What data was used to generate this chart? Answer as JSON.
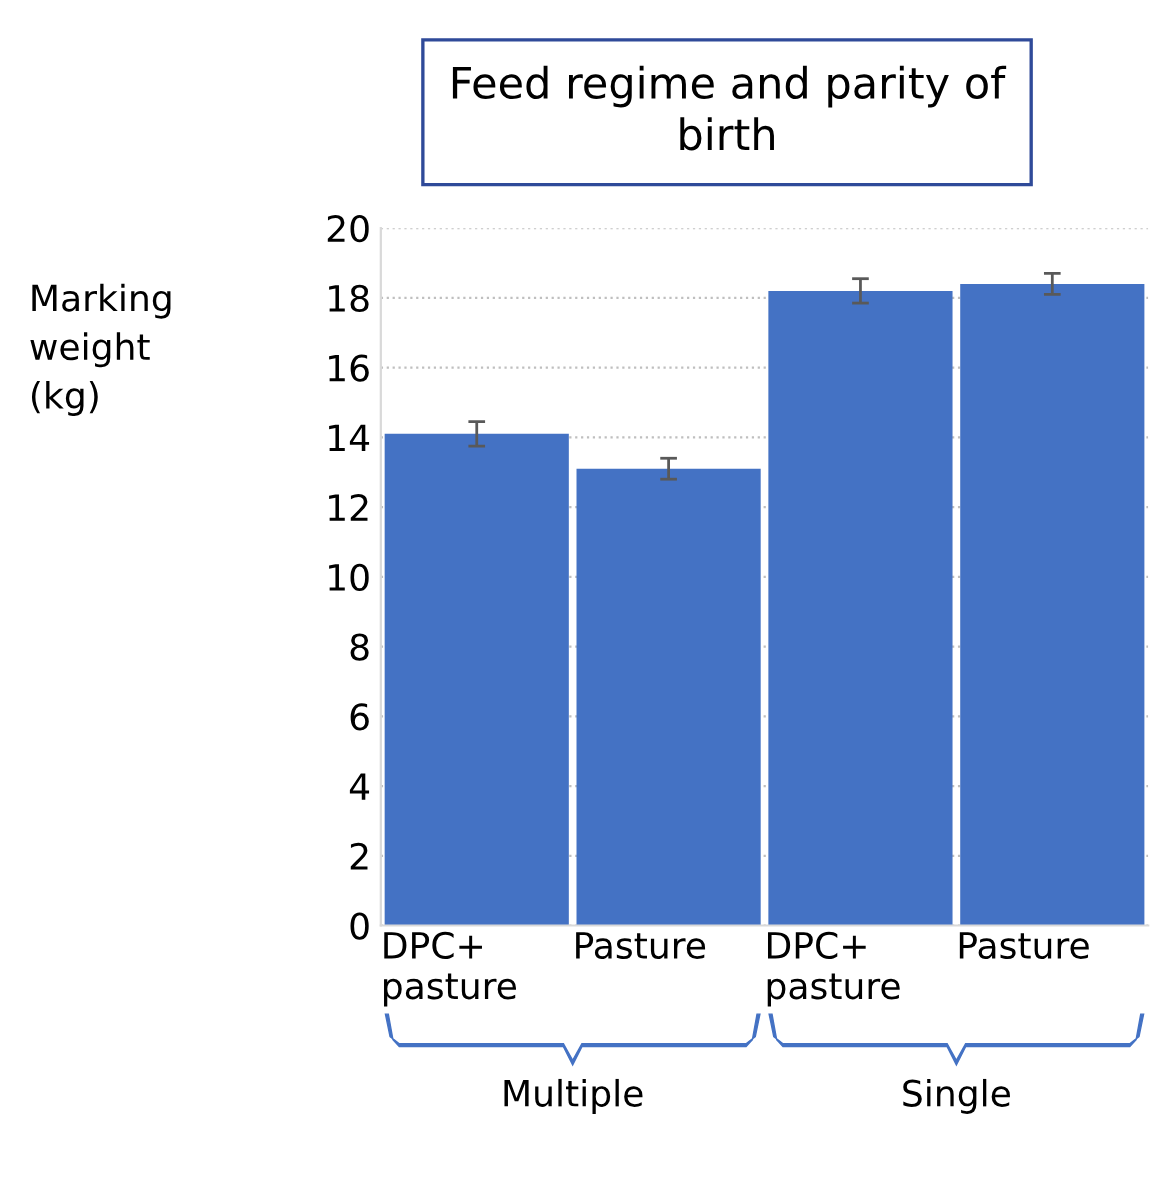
{
  "chart_data": {
    "type": "bar",
    "title": "Feed regime and parity of\nbirth",
    "ylabel": "Marking\nweight\n(kg)",
    "categories": [
      "DPC+\npasture",
      "Pasture",
      "DPC+\npasture",
      "Pasture"
    ],
    "values": [
      14.1,
      13.1,
      18.2,
      18.4
    ],
    "errors": [
      0.35,
      0.3,
      0.35,
      0.3
    ],
    "color": "#4472c4",
    "ylim": [
      0,
      20
    ],
    "yticks": [
      0,
      2,
      4,
      6,
      8,
      10,
      12,
      14,
      16,
      18,
      20
    ],
    "grid": "y",
    "annotations": [
      "Multiple",
      "Single"
    ]
  }
}
